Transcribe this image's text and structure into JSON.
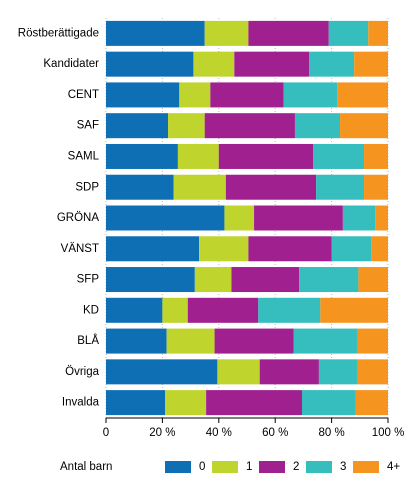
{
  "chart_data": {
    "type": "stacked_bar_horizontal",
    "categories": [
      "Röstberättigade",
      "Kandidater",
      "CENT",
      "SAF",
      "SAML",
      "SDP",
      "GRÖNA",
      "VÄNST",
      "SFP",
      "KD",
      "BLÅ",
      "Övriga",
      "Invalda"
    ],
    "legend_title": "Antal barn",
    "series": [
      {
        "name": "0",
        "color": "#0f6fb4",
        "values": [
          35,
          31,
          26,
          22,
          25.5,
          24,
          42,
          33,
          31.5,
          20,
          21.5,
          39.5,
          21
        ]
      },
      {
        "name": "1",
        "color": "#bfd52e",
        "values": [
          15.5,
          14.5,
          11,
          13,
          14.5,
          18.5,
          10.5,
          17.5,
          13,
          9,
          17,
          15,
          14.5
        ]
      },
      {
        "name": "2",
        "color": "#a0208f",
        "values": [
          28.5,
          26.5,
          26,
          32,
          33.5,
          32,
          31.5,
          29.5,
          24,
          25,
          28,
          21,
          34
        ]
      },
      {
        "name": "3",
        "color": "#36bdbd",
        "values": [
          14,
          16,
          19,
          16,
          18,
          17,
          11.5,
          14,
          21,
          22,
          22.5,
          13.5,
          19
        ]
      },
      {
        "name": "4+",
        "color": "#f5951f",
        "values": [
          7,
          12,
          18,
          17,
          8.5,
          8.5,
          4.5,
          6,
          10.5,
          24,
          11,
          11,
          11.5
        ]
      }
    ],
    "xlim": [
      0,
      100
    ],
    "xticks": [
      0,
      {
        "value": 20,
        "label": "20 %"
      },
      {
        "value": 40,
        "label": "40 %"
      },
      {
        "value": 60,
        "label": "60 %"
      },
      {
        "value": 80,
        "label": "80 %"
      },
      {
        "value": 100,
        "label": "100 %"
      }
    ],
    "grid": true
  }
}
